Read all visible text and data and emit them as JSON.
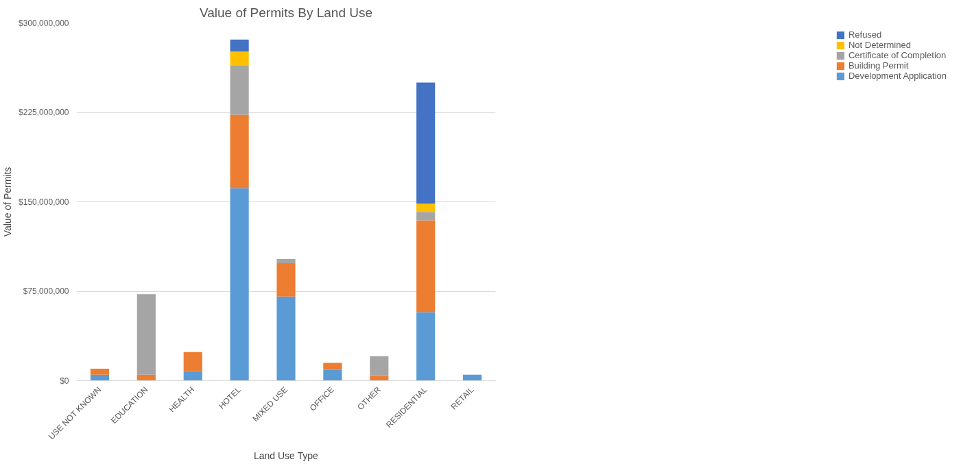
{
  "chart_data": {
    "type": "bar",
    "title": "Value of Permits By Land Use",
    "xlabel": "Land Use Type",
    "ylabel": "Value of Permits",
    "categories": [
      "USE NOT KNOWN",
      "EDUCATION",
      "HEALTH",
      "HOTEL",
      "MIXED USE",
      "OFFICE",
      "OTHER",
      "RESIDENTIAL",
      "RETAIL"
    ],
    "stacked": true,
    "series": [
      {
        "name": "Development Application",
        "color": "#5b9bd5",
        "values": [
          5000000,
          0,
          8000000,
          161500000,
          70500000,
          9000000,
          0,
          57500000,
          5000000
        ]
      },
      {
        "name": "Building Permit",
        "color": "#ed7d31",
        "values": [
          5000000,
          5000000,
          16000000,
          61500000,
          28000000,
          6000000,
          4000000,
          77000000,
          0
        ]
      },
      {
        "name": "Certificate of Completion",
        "color": "#a5a5a5",
        "values": [
          0,
          67500000,
          0,
          41500000,
          3500000,
          0,
          16500000,
          7000000,
          0
        ]
      },
      {
        "name": "Not Determined",
        "color": "#ffc000",
        "values": [
          0,
          0,
          0,
          11500000,
          0,
          0,
          0,
          7000000,
          0
        ]
      },
      {
        "name": "Refused",
        "color": "#4472c4",
        "values": [
          0,
          0,
          0,
          10000000,
          0,
          0,
          0,
          101500000,
          0
        ]
      }
    ],
    "ylim": [
      0,
      300000000
    ],
    "yticks": [
      {
        "value": 0,
        "label": "$0"
      },
      {
        "value": 75000000,
        "label": "$75,000,000"
      },
      {
        "value": 150000000,
        "label": "$150,000,000"
      },
      {
        "value": 225000000,
        "label": "$225,000,000"
      },
      {
        "value": 300000000,
        "label": "$300,000,000"
      }
    ],
    "grid": "y",
    "legend": "right"
  }
}
